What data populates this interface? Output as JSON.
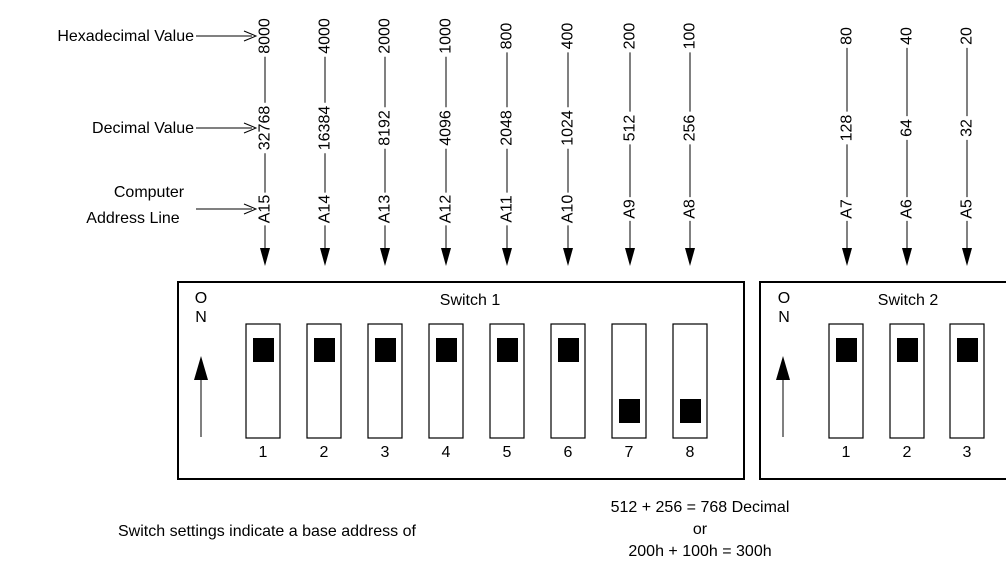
{
  "row_labels": {
    "hex": "Hexadecimal Value",
    "decimal": "Decimal Value",
    "address_line1": "Computer",
    "address_line2": "Address Line"
  },
  "columns": [
    {
      "hex": "8000",
      "decimal": "32768",
      "address": "A15"
    },
    {
      "hex": "4000",
      "decimal": "16384",
      "address": "A14"
    },
    {
      "hex": "2000",
      "decimal": "8192",
      "address": "A13"
    },
    {
      "hex": "1000",
      "decimal": "4096",
      "address": "A12"
    },
    {
      "hex": "800",
      "decimal": "2048",
      "address": "A11"
    },
    {
      "hex": "400",
      "decimal": "1024",
      "address": "A10"
    },
    {
      "hex": "200",
      "decimal": "512",
      "address": "A9"
    },
    {
      "hex": "100",
      "decimal": "256",
      "address": "A8"
    },
    {
      "hex": "80",
      "decimal": "128",
      "address": "A7"
    },
    {
      "hex": "40",
      "decimal": "64",
      "address": "A6"
    },
    {
      "hex": "20",
      "decimal": "32",
      "address": "A5"
    }
  ],
  "switch1": {
    "title": "Switch 1",
    "on_label": [
      "O",
      "N"
    ],
    "positions": [
      {
        "number": "1",
        "state": "on"
      },
      {
        "number": "2",
        "state": "on"
      },
      {
        "number": "3",
        "state": "on"
      },
      {
        "number": "4",
        "state": "on"
      },
      {
        "number": "5",
        "state": "on"
      },
      {
        "number": "6",
        "state": "on"
      },
      {
        "number": "7",
        "state": "off"
      },
      {
        "number": "8",
        "state": "off"
      }
    ]
  },
  "switch2": {
    "title": "Switch 2",
    "on_label": [
      "O",
      "N"
    ],
    "positions": [
      {
        "number": "1",
        "state": "on"
      },
      {
        "number": "2",
        "state": "on"
      },
      {
        "number": "3",
        "state": "on"
      }
    ]
  },
  "footer": {
    "note": "Switch settings indicate a base address of",
    "calc_line1": "512 + 256 = 768 Decimal",
    "calc_line2": "or",
    "calc_line3": "200h + 100h = 300h"
  }
}
